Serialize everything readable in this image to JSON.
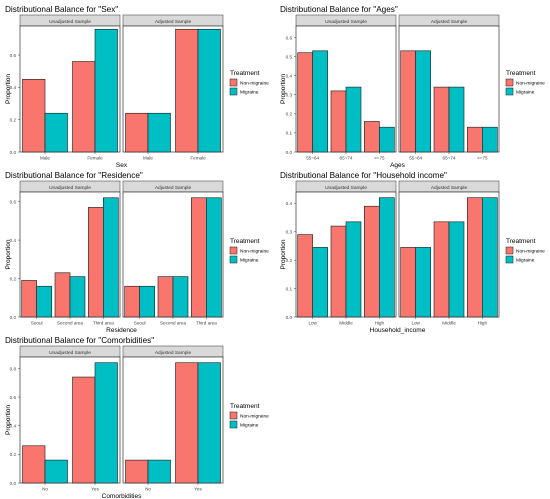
{
  "colors": {
    "non_migraine": "#F8766D",
    "migraine": "#00BFC4",
    "strip_bg": "#D9D9D9",
    "panel_border": "#333333",
    "bar_border": "#1a1a1a"
  },
  "legend": {
    "title": "Treatment",
    "items": [
      "Non-migraine",
      "Migraine"
    ]
  },
  "chart_data": [
    {
      "type": "bar",
      "title": "Distributional Balance for \"Sex\"",
      "xlabel": "Sex",
      "ylabel": "Proportion",
      "facets": [
        "Unadjusted Sample",
        "Adjusted Sample"
      ],
      "categories": [
        "Male",
        "Female"
      ],
      "ylim": [
        0,
        0.78
      ],
      "yticks": [
        "0.0",
        "0.2",
        "0.4",
        "0.6"
      ],
      "ytick_values": [
        0,
        0.2,
        0.4,
        0.6
      ],
      "series": [
        {
          "name": "Non-migraine",
          "unadjusted": [
            0.45,
            0.56
          ],
          "adjusted": [
            0.24,
            0.76
          ]
        },
        {
          "name": "Migraine",
          "unadjusted": [
            0.24,
            0.76
          ],
          "adjusted": [
            0.24,
            0.76
          ]
        }
      ]
    },
    {
      "type": "bar",
      "title": "Distributional Balance for \"Ages\"",
      "xlabel": "Ages",
      "ylabel": "Proportion",
      "facets": [
        "Unadjusted Sample",
        "Adjusted Sample"
      ],
      "categories": [
        "55~64",
        "65~74",
        ">=75"
      ],
      "ylim": [
        0,
        0.66
      ],
      "yticks": [
        "0.0",
        "0.1",
        "0.2",
        "0.3",
        "0.4",
        "0.5",
        "0.6"
      ],
      "ytick_values": [
        0,
        0.1,
        0.2,
        0.3,
        0.4,
        0.5,
        0.6
      ],
      "series": [
        {
          "name": "Non-migraine",
          "unadjusted": [
            0.52,
            0.32,
            0.16
          ],
          "adjusted": [
            0.53,
            0.34,
            0.13
          ]
        },
        {
          "name": "Migraine",
          "unadjusted": [
            0.53,
            0.34,
            0.13
          ],
          "adjusted": [
            0.53,
            0.34,
            0.13
          ]
        }
      ]
    },
    {
      "type": "bar",
      "title": "Distributional Balance for \"Residence\"",
      "xlabel": "Residence",
      "ylabel": "Proportion",
      "facets": [
        "Unadjusted Sample",
        "Adjusted Sample"
      ],
      "categories": [
        "Seoul",
        "Second area",
        "Third area"
      ],
      "ylim": [
        0,
        0.65
      ],
      "yticks": [
        "0.0",
        "0.2",
        "0.4",
        "0.6"
      ],
      "ytick_values": [
        0,
        0.2,
        0.4,
        0.6
      ],
      "series": [
        {
          "name": "Non-migraine",
          "unadjusted": [
            0.19,
            0.23,
            0.57
          ],
          "adjusted": [
            0.16,
            0.21,
            0.62
          ]
        },
        {
          "name": "Migraine",
          "unadjusted": [
            0.16,
            0.21,
            0.62
          ],
          "adjusted": [
            0.16,
            0.21,
            0.62
          ]
        }
      ]
    },
    {
      "type": "bar",
      "title": "Distributional Balance for \"Household income\"",
      "xlabel": "Household_income",
      "ylabel": "Proportion",
      "facets": [
        "Unadjusted Sample",
        "Adjusted Sample"
      ],
      "categories": [
        "Low",
        "Middle",
        "High"
      ],
      "ylim": [
        0,
        0.44
      ],
      "yticks": [
        "0.0",
        "0.1",
        "0.2",
        "0.3",
        "0.4"
      ],
      "ytick_values": [
        0,
        0.1,
        0.2,
        0.3,
        0.4
      ],
      "series": [
        {
          "name": "Non-migraine",
          "unadjusted": [
            0.29,
            0.32,
            0.39
          ],
          "adjusted": [
            0.245,
            0.335,
            0.42
          ]
        },
        {
          "name": "Migraine",
          "unadjusted": [
            0.245,
            0.335,
            0.42
          ],
          "adjusted": [
            0.245,
            0.335,
            0.42
          ]
        }
      ]
    },
    {
      "type": "bar",
      "title": "Distributional Balance for \"Comorbidities\"",
      "xlabel": "Comorbidities",
      "ylabel": "Proportion",
      "facets": [
        "Unadjusted Sample",
        "Adjusted Sample"
      ],
      "categories": [
        "No",
        "Yes"
      ],
      "ylim": [
        0,
        0.88
      ],
      "yticks": [
        "0.0",
        "0.2",
        "0.4",
        "0.6",
        "0.8"
      ],
      "ytick_values": [
        0,
        0.2,
        0.4,
        0.6,
        0.8
      ],
      "series": [
        {
          "name": "Non-migraine",
          "unadjusted": [
            0.26,
            0.74
          ],
          "adjusted": [
            0.16,
            0.84
          ]
        },
        {
          "name": "Migraine",
          "unadjusted": [
            0.16,
            0.84
          ],
          "adjusted": [
            0.16,
            0.84
          ]
        }
      ]
    }
  ]
}
